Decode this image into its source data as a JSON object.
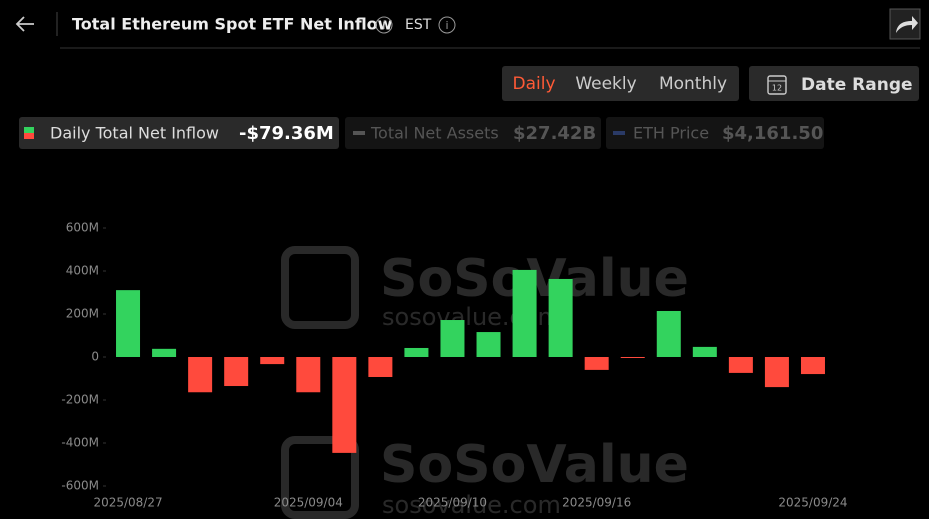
{
  "header": {
    "title": "Total Ethereum Spot ETF Net Inflow",
    "timezone": "EST"
  },
  "tabs": [
    "Daily",
    "Weekly",
    "Monthly"
  ],
  "active_tab": 0,
  "date_range": {
    "icon_day": "12",
    "label": "Date Range"
  },
  "legend": [
    {
      "name": "Daily Total Net Inflow",
      "value": "-$79.36M"
    },
    {
      "name": "Total Net Assets",
      "value": "$27.42B"
    },
    {
      "name": "ETH Price",
      "value": "$4,161.50"
    }
  ],
  "watermark": {
    "brand": "SoSoValue",
    "url": "sosovalue.com"
  },
  "chart_data": {
    "type": "bar",
    "categories": [
      "2025/08/27",
      null,
      null,
      null,
      null,
      "2025/09/04",
      null,
      null,
      null,
      "2025/09/10",
      null,
      null,
      null,
      "2025/09/16",
      null,
      null,
      null,
      null,
      null,
      "2025/09/24"
    ],
    "values": [
      311,
      38,
      -164,
      -135,
      -33,
      -164,
      -446,
      -93,
      42,
      172,
      116,
      405,
      363,
      -60,
      -1,
      214,
      47,
      -74,
      -140,
      -79.36
    ],
    "positive_color": "#33d35e",
    "negative_color": "#ff4a3d",
    "ylim": [
      -600,
      600
    ],
    "yticks": [
      {
        "value": -600,
        "label": "-600M"
      },
      {
        "value": -400,
        "label": "-400M"
      },
      {
        "value": -200,
        "label": "-200M"
      },
      0,
      {
        "value": 200,
        "label": "200M"
      },
      {
        "value": 400,
        "label": "400M"
      },
      {
        "value": 600,
        "label": "600M"
      }
    ],
    "grid": false
  }
}
